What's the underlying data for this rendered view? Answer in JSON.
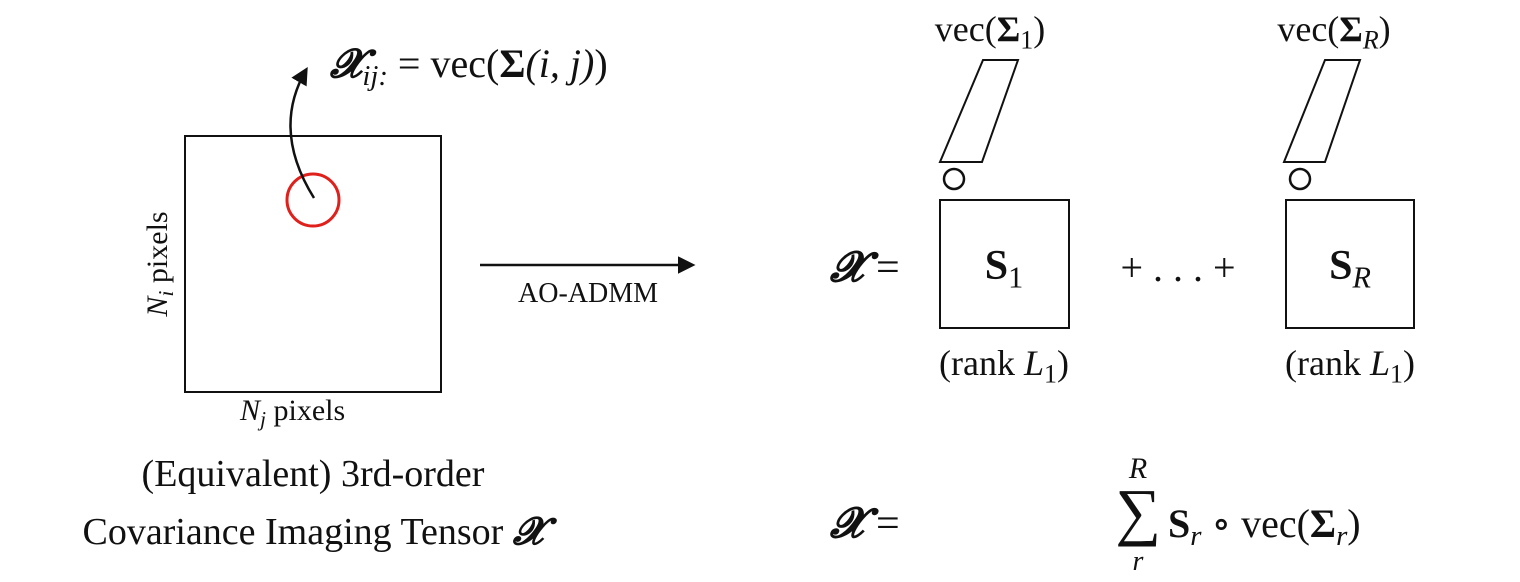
{
  "left": {
    "formula_lhs_symbol": "𝓧",
    "formula_lhs_sub": "ij:",
    "formula_rhs_prefix": " = vec(",
    "formula_rhs_sigma": "Σ",
    "formula_rhs_args": "(i, j)",
    "formula_rhs_suffix": ")",
    "ylabel_var": "N",
    "ylabel_sub": "i",
    "ylabel_unit": " pixels",
    "xlabel_var": "N",
    "xlabel_sub": "j",
    "xlabel_unit": " pixels",
    "caption_line1": "(Equivalent) 3rd-order",
    "caption_line2": "Covariance Imaging Tensor ",
    "caption_symbol": "𝓧"
  },
  "arrow_label": "AO-ADMM",
  "right": {
    "eq_symbol": "𝓧",
    "eq_sign": "=",
    "plus_dots": "+ . . . +",
    "term1": {
      "vec_prefix": "vec(",
      "sigma": "Σ",
      "vec_sub": "1",
      "vec_suffix": ")",
      "block_symbol": "S",
      "block_sub": "1",
      "rank_prefix": "(rank ",
      "rank_var": "L",
      "rank_sub": "1",
      "rank_suffix": ")"
    },
    "termR": {
      "vec_prefix": "vec(",
      "sigma": "Σ",
      "vec_sub": "R",
      "vec_suffix": ")",
      "block_symbol": "S",
      "block_sub": "R",
      "rank_prefix": "(rank ",
      "rank_var": "L",
      "rank_sub": "1",
      "rank_suffix": ")"
    },
    "sum": {
      "lhs_symbol": "𝓧",
      "eq_sign": "=",
      "sum_sign": "∑",
      "upper": "R",
      "lower": "r",
      "term_S": "S",
      "term_S_sub": "r",
      "circ": " ∘ vec(",
      "term_sigma": "Σ",
      "term_sigma_sub": "r",
      "term_suffix": ")"
    }
  },
  "colors": {
    "line": "#111111",
    "highlight": "#e0201b"
  }
}
